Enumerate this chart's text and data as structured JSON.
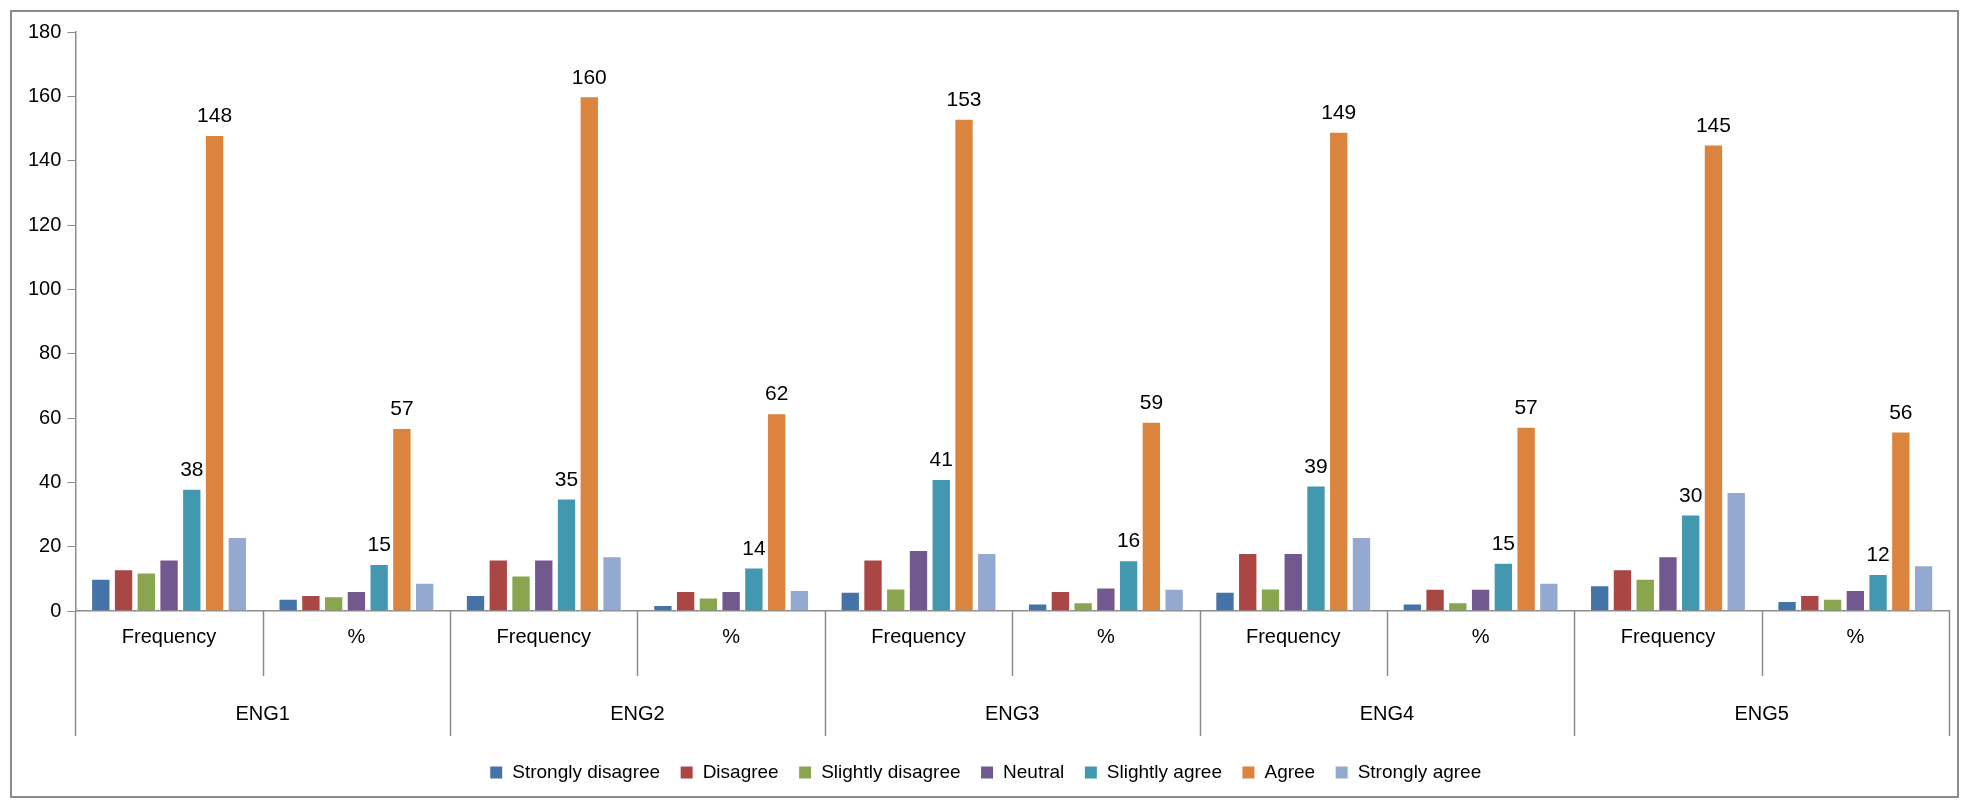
{
  "chart_data": {
    "type": "bar",
    "categories": [
      "Frequency",
      "%",
      "Frequency",
      "%",
      "Frequency",
      "%",
      "Frequency",
      "%",
      "Frequency",
      "%"
    ],
    "annotations": [
      "ENG1",
      "ENG2",
      "ENG3",
      "ENG4",
      "ENG5"
    ],
    "series": [
      {
        "name": "Strongly disagree",
        "color": "#4572a7",
        "values": [
          10,
          3.8,
          5,
          1.9,
          6,
          2.3,
          6,
          2.3,
          8,
          3.1
        ]
      },
      {
        "name": "Disagree",
        "color": "#aa4643",
        "values": [
          13,
          5.0,
          16,
          6.2,
          16,
          6.2,
          18,
          6.9,
          13,
          5.0
        ]
      },
      {
        "name": "Slightly disagree",
        "color": "#89a54e",
        "values": [
          12,
          4.6,
          11,
          4.2,
          7,
          2.7,
          7,
          2.7,
          10,
          3.8
        ]
      },
      {
        "name": "Neutral",
        "color": "#71588f",
        "values": [
          16,
          6.2,
          16,
          6.2,
          19,
          7.3,
          18,
          6.9,
          17,
          6.5
        ]
      },
      {
        "name": "Slightly agree",
        "color": "#4198af",
        "values": [
          38,
          14.6,
          35,
          13.5,
          41,
          15.8,
          39,
          15.0,
          30,
          11.5
        ],
        "value_labels": [
          "38",
          "15",
          "35",
          "14",
          "41",
          "16",
          "39",
          "15",
          "30",
          "12"
        ]
      },
      {
        "name": "Agree",
        "color": "#db843d",
        "values": [
          148,
          56.9,
          160,
          61.5,
          153,
          58.8,
          149,
          57.3,
          145,
          55.8
        ],
        "value_labels": [
          "148",
          "57",
          "160",
          "62",
          "153",
          "59",
          "149",
          "57",
          "145",
          "56"
        ]
      },
      {
        "name": "Strongly agree",
        "color": "#93a9cf",
        "values": [
          23,
          8.8,
          17,
          6.5,
          18,
          6.9,
          23,
          8.8,
          37,
          14.2
        ]
      }
    ],
    "ylim": [
      0,
      180
    ],
    "yticks": [
      0,
      20,
      40,
      60,
      80,
      100,
      120,
      140,
      160,
      180
    ],
    "grid": false,
    "legend": "bottom"
  }
}
